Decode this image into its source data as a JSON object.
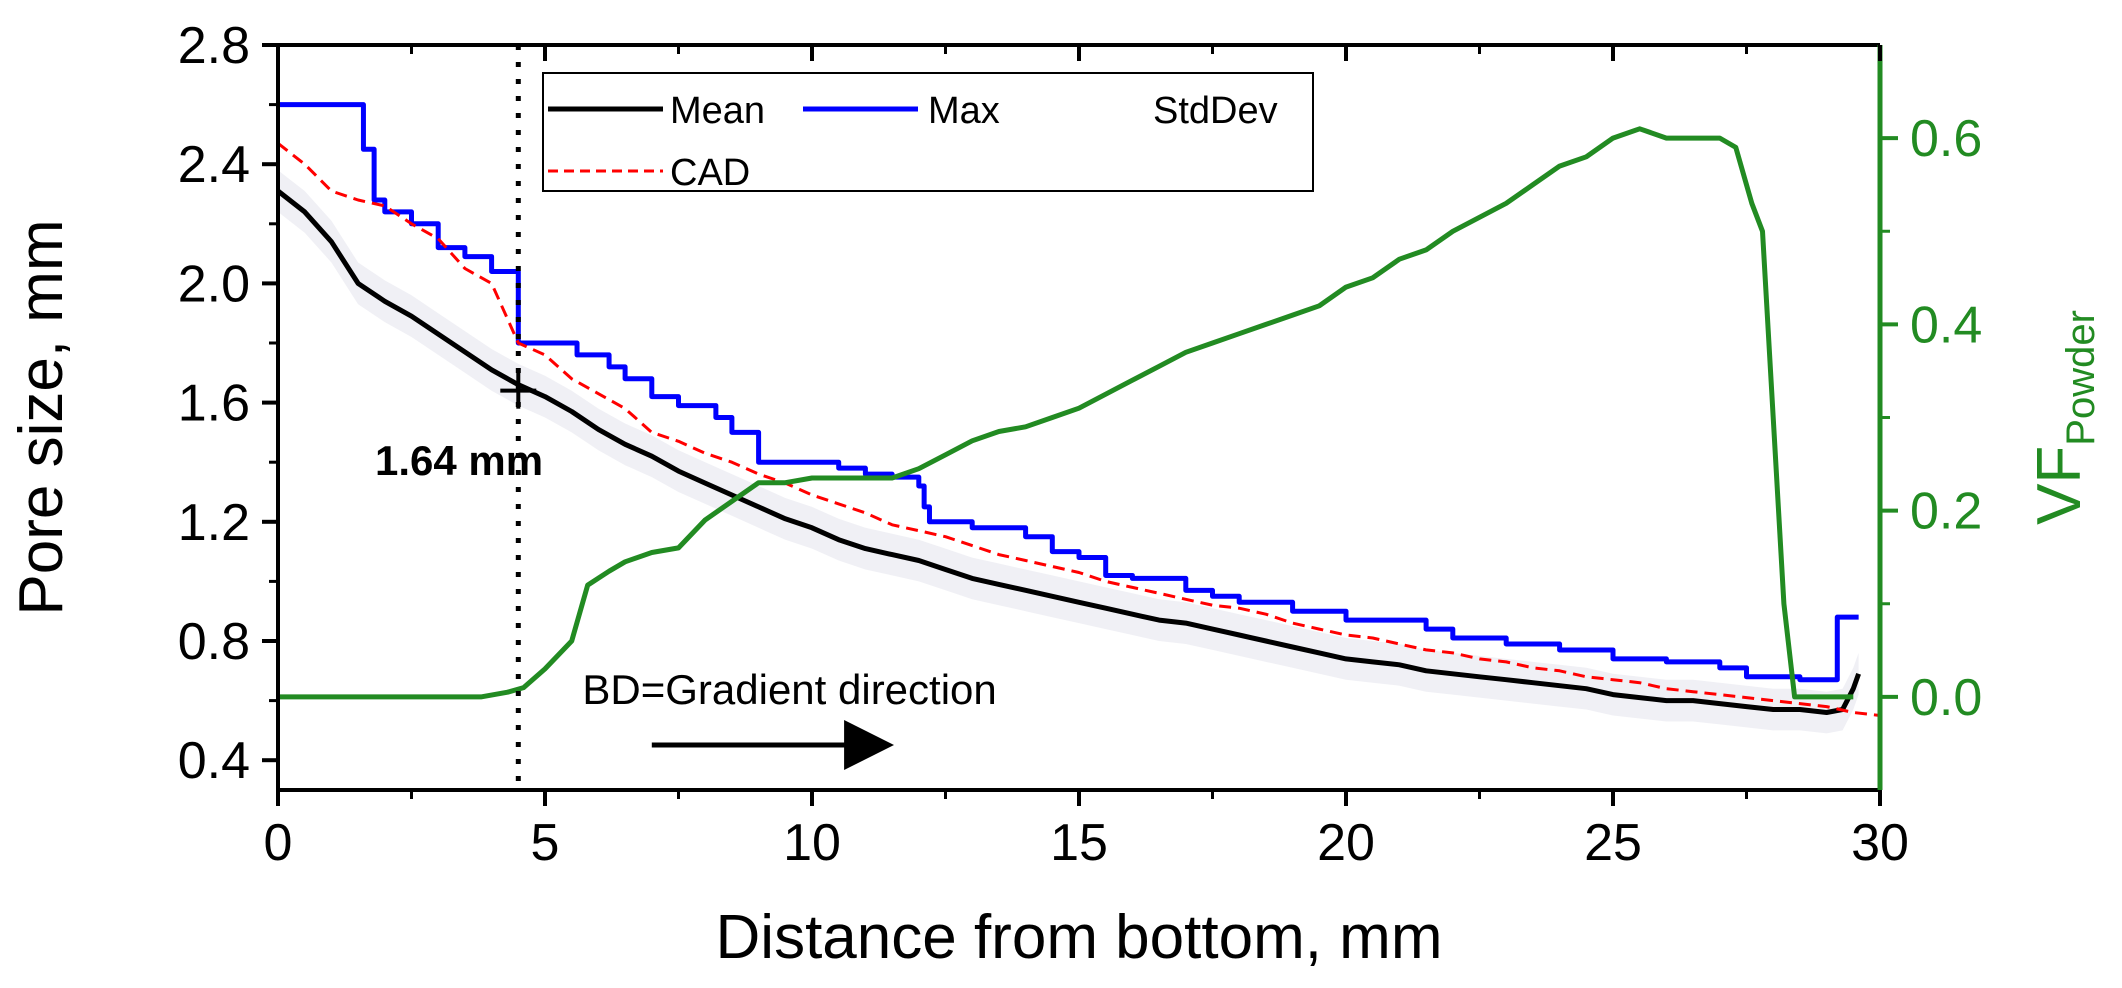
{
  "chart_data": {
    "type": "line",
    "x": {
      "label": "Distance from bottom, mm",
      "lim": [
        0,
        30
      ],
      "ticks": [
        0,
        5,
        10,
        15,
        20,
        25,
        30
      ],
      "tick_labels": [
        "0",
        "5",
        "10",
        "15",
        "20",
        "25",
        "30"
      ]
    },
    "y_left": {
      "label": "Pore size, mm",
      "lim": [
        0.3,
        2.8
      ],
      "ticks": [
        0.4,
        0.8,
        1.2,
        1.6,
        2.0,
        2.4,
        2.8
      ],
      "tick_labels": [
        "0.4",
        "0.8",
        "1.2",
        "1.6",
        "2.0",
        "2.4",
        "2.8"
      ]
    },
    "y_right": {
      "label_main": "VF",
      "label_sub": "Powder",
      "lim": [
        -0.1,
        0.7
      ],
      "ticks": [
        0.0,
        0.2,
        0.4,
        0.6
      ],
      "tick_labels": [
        "0.0",
        "0.2",
        "0.4",
        "0.6"
      ],
      "color": "#228B22"
    },
    "series": [
      {
        "name": "Mean",
        "axis": "left",
        "color": "#000000",
        "style": "solid",
        "points": [
          [
            0,
            2.31
          ],
          [
            0.5,
            2.24
          ],
          [
            1,
            2.14
          ],
          [
            1.5,
            2.0
          ],
          [
            2,
            1.94
          ],
          [
            2.5,
            1.89
          ],
          [
            3,
            1.83
          ],
          [
            3.5,
            1.77
          ],
          [
            4,
            1.71
          ],
          [
            4.5,
            1.66
          ],
          [
            5,
            1.62
          ],
          [
            5.5,
            1.57
          ],
          [
            6,
            1.51
          ],
          [
            6.5,
            1.46
          ],
          [
            7,
            1.42
          ],
          [
            7.5,
            1.37
          ],
          [
            8,
            1.33
          ],
          [
            8.5,
            1.29
          ],
          [
            9,
            1.25
          ],
          [
            9.5,
            1.21
          ],
          [
            10,
            1.18
          ],
          [
            10.5,
            1.14
          ],
          [
            11,
            1.11
          ],
          [
            11.5,
            1.09
          ],
          [
            12,
            1.07
          ],
          [
            12.5,
            1.04
          ],
          [
            13,
            1.01
          ],
          [
            13.5,
            0.99
          ],
          [
            14,
            0.97
          ],
          [
            14.5,
            0.95
          ],
          [
            15,
            0.93
          ],
          [
            15.5,
            0.91
          ],
          [
            16,
            0.89
          ],
          [
            16.5,
            0.87
          ],
          [
            17,
            0.86
          ],
          [
            17.5,
            0.84
          ],
          [
            18,
            0.82
          ],
          [
            18.5,
            0.8
          ],
          [
            19,
            0.78
          ],
          [
            19.5,
            0.76
          ],
          [
            20,
            0.74
          ],
          [
            20.5,
            0.73
          ],
          [
            21,
            0.72
          ],
          [
            21.5,
            0.7
          ],
          [
            22,
            0.69
          ],
          [
            22.5,
            0.68
          ],
          [
            23,
            0.67
          ],
          [
            23.5,
            0.66
          ],
          [
            24,
            0.65
          ],
          [
            24.5,
            0.64
          ],
          [
            25,
            0.62
          ],
          [
            25.5,
            0.61
          ],
          [
            26,
            0.6
          ],
          [
            26.5,
            0.6
          ],
          [
            27,
            0.59
          ],
          [
            27.5,
            0.58
          ],
          [
            28,
            0.57
          ],
          [
            28.5,
            0.57
          ],
          [
            29,
            0.56
          ],
          [
            29.3,
            0.57
          ],
          [
            29.5,
            0.64
          ],
          [
            29.6,
            0.69
          ]
        ]
      },
      {
        "name": "Max",
        "axis": "left",
        "color": "#0000ff",
        "style": "step",
        "points": [
          [
            0,
            2.6
          ],
          [
            1.4,
            2.6
          ],
          [
            1.6,
            2.45
          ],
          [
            1.8,
            2.28
          ],
          [
            2.0,
            2.24
          ],
          [
            2.5,
            2.2
          ],
          [
            3.0,
            2.12
          ],
          [
            3.5,
            2.09
          ],
          [
            4.0,
            2.04
          ],
          [
            4.5,
            2.04
          ],
          [
            4.5,
            1.8
          ],
          [
            5.5,
            1.8
          ],
          [
            5.6,
            1.76
          ],
          [
            6.2,
            1.72
          ],
          [
            6.5,
            1.68
          ],
          [
            7.0,
            1.62
          ],
          [
            7.5,
            1.59
          ],
          [
            8.2,
            1.55
          ],
          [
            8.5,
            1.5
          ],
          [
            9.0,
            1.4
          ],
          [
            10.5,
            1.38
          ],
          [
            11.0,
            1.36
          ],
          [
            11.5,
            1.35
          ],
          [
            12.0,
            1.32
          ],
          [
            12.1,
            1.25
          ],
          [
            12.2,
            1.2
          ],
          [
            13.0,
            1.18
          ],
          [
            14.0,
            1.15
          ],
          [
            14.5,
            1.1
          ],
          [
            15.0,
            1.08
          ],
          [
            15.5,
            1.02
          ],
          [
            16.0,
            1.01
          ],
          [
            17.0,
            0.97
          ],
          [
            17.5,
            0.95
          ],
          [
            18.0,
            0.93
          ],
          [
            19.0,
            0.9
          ],
          [
            20.0,
            0.87
          ],
          [
            21.5,
            0.84
          ],
          [
            22.0,
            0.81
          ],
          [
            23.0,
            0.79
          ],
          [
            24.0,
            0.77
          ],
          [
            25.0,
            0.74
          ],
          [
            26.0,
            0.73
          ],
          [
            27.0,
            0.71
          ],
          [
            27.5,
            0.68
          ],
          [
            28.5,
            0.67
          ],
          [
            29.2,
            0.67
          ],
          [
            29.2,
            0.88
          ],
          [
            29.6,
            0.88
          ]
        ]
      },
      {
        "name": "CAD",
        "axis": "left",
        "color": "#ff0000",
        "style": "dashed",
        "points": [
          [
            0,
            2.47
          ],
          [
            0.5,
            2.4
          ],
          [
            1,
            2.31
          ],
          [
            1.5,
            2.28
          ],
          [
            2,
            2.26
          ],
          [
            2.5,
            2.2
          ],
          [
            3,
            2.15
          ],
          [
            3.5,
            2.05
          ],
          [
            4,
            2.0
          ],
          [
            4.5,
            1.8
          ],
          [
            5,
            1.76
          ],
          [
            5.5,
            1.68
          ],
          [
            6,
            1.63
          ],
          [
            6.5,
            1.58
          ],
          [
            7,
            1.5
          ],
          [
            7.5,
            1.47
          ],
          [
            8,
            1.43
          ],
          [
            8.5,
            1.4
          ],
          [
            9,
            1.36
          ],
          [
            9.5,
            1.33
          ],
          [
            10,
            1.29
          ],
          [
            10.5,
            1.26
          ],
          [
            11,
            1.23
          ],
          [
            11.5,
            1.19
          ],
          [
            12,
            1.17
          ],
          [
            12.5,
            1.15
          ],
          [
            13,
            1.12
          ],
          [
            13.5,
            1.09
          ],
          [
            14,
            1.07
          ],
          [
            14.5,
            1.05
          ],
          [
            15,
            1.03
          ],
          [
            15.5,
            1.0
          ],
          [
            16,
            0.98
          ],
          [
            16.5,
            0.96
          ],
          [
            17,
            0.94
          ],
          [
            17.5,
            0.92
          ],
          [
            18,
            0.91
          ],
          [
            18.5,
            0.89
          ],
          [
            19,
            0.86
          ],
          [
            19.5,
            0.84
          ],
          [
            20,
            0.82
          ],
          [
            20.5,
            0.81
          ],
          [
            21,
            0.79
          ],
          [
            21.5,
            0.77
          ],
          [
            22,
            0.76
          ],
          [
            22.5,
            0.74
          ],
          [
            23,
            0.73
          ],
          [
            23.5,
            0.71
          ],
          [
            24,
            0.7
          ],
          [
            24.5,
            0.68
          ],
          [
            25,
            0.67
          ],
          [
            25.5,
            0.66
          ],
          [
            26,
            0.64
          ],
          [
            26.5,
            0.63
          ],
          [
            27,
            0.62
          ],
          [
            27.5,
            0.61
          ],
          [
            28,
            0.6
          ],
          [
            28.5,
            0.59
          ],
          [
            29,
            0.58
          ],
          [
            29.5,
            0.56
          ],
          [
            30,
            0.55
          ]
        ]
      },
      {
        "name": "StdDev",
        "axis": "left",
        "color": "#cccccc",
        "style": "band",
        "points": []
      },
      {
        "name": "VF_Powder",
        "axis": "right",
        "color": "#228B22",
        "style": "solid",
        "points": [
          [
            0,
            0.0
          ],
          [
            3.8,
            0.0
          ],
          [
            4.3,
            0.005
          ],
          [
            4.6,
            0.01
          ],
          [
            5.0,
            0.03
          ],
          [
            5.5,
            0.06
          ],
          [
            5.8,
            0.12
          ],
          [
            6.2,
            0.135
          ],
          [
            6.5,
            0.145
          ],
          [
            7.0,
            0.155
          ],
          [
            7.5,
            0.16
          ],
          [
            8.0,
            0.19
          ],
          [
            8.5,
            0.21
          ],
          [
            9.0,
            0.23
          ],
          [
            9.5,
            0.23
          ],
          [
            10.0,
            0.235
          ],
          [
            10.5,
            0.235
          ],
          [
            11.0,
            0.235
          ],
          [
            11.5,
            0.235
          ],
          [
            12.0,
            0.245
          ],
          [
            12.5,
            0.26
          ],
          [
            13.0,
            0.275
          ],
          [
            13.5,
            0.285
          ],
          [
            14.0,
            0.29
          ],
          [
            14.5,
            0.3
          ],
          [
            15.0,
            0.31
          ],
          [
            15.5,
            0.325
          ],
          [
            16.0,
            0.34
          ],
          [
            16.5,
            0.355
          ],
          [
            17.0,
            0.37
          ],
          [
            17.5,
            0.38
          ],
          [
            18.0,
            0.39
          ],
          [
            18.5,
            0.4
          ],
          [
            19.0,
            0.41
          ],
          [
            19.5,
            0.42
          ],
          [
            20.0,
            0.44
          ],
          [
            20.5,
            0.45
          ],
          [
            21.0,
            0.47
          ],
          [
            21.5,
            0.48
          ],
          [
            22.0,
            0.5
          ],
          [
            22.5,
            0.515
          ],
          [
            23.0,
            0.53
          ],
          [
            23.5,
            0.55
          ],
          [
            24.0,
            0.57
          ],
          [
            24.5,
            0.58
          ],
          [
            25.0,
            0.6
          ],
          [
            25.5,
            0.61
          ],
          [
            26.0,
            0.6
          ],
          [
            26.5,
            0.6
          ],
          [
            27.0,
            0.6
          ],
          [
            27.3,
            0.59
          ],
          [
            27.6,
            0.53
          ],
          [
            27.8,
            0.5
          ],
          [
            28.0,
            0.3
          ],
          [
            28.2,
            0.1
          ],
          [
            28.4,
            0.0
          ],
          [
            29.5,
            0.0
          ]
        ]
      }
    ],
    "legend": {
      "entries": [
        "Mean",
        "Max",
        "StdDev",
        "CAD"
      ],
      "position": "top-left"
    },
    "annotations": {
      "value_label": "1.64 mm",
      "marker_x": 4.5,
      "marker_y": 1.64,
      "vline_x": 4.5,
      "arrow_text": "BD=Gradient direction",
      "arrow_x_start": 7,
      "arrow_x_end": 11.5,
      "arrow_y": 0.36
    }
  }
}
